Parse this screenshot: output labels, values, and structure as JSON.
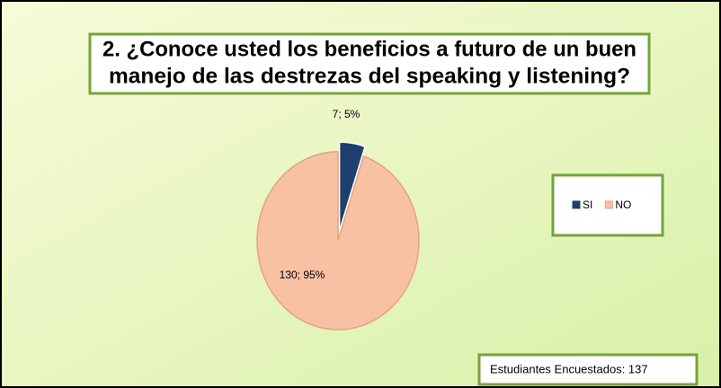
{
  "chart_data": {
    "type": "pie",
    "title": [
      "2. ¿Conoce usted los beneficios a futuro de un buen",
      "manejo de las destrezas del speaking y listening?"
    ],
    "categories": [
      "SI",
      "NO"
    ],
    "values": [
      7,
      130
    ],
    "value_labels": [
      "7; 5%",
      "130; 95%"
    ],
    "colors": [
      "#1f3f6e",
      "#f8c1a3"
    ],
    "legend": "right",
    "annotation": "Estudiantes Encuestados:  137"
  }
}
